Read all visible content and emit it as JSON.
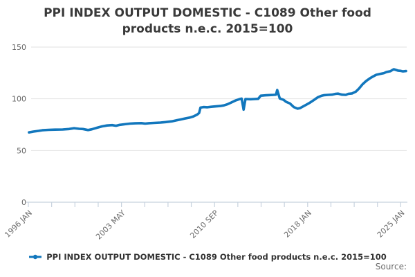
{
  "title": "PPI INDEX OUTPUT DOMESTIC - C1089 Other food products n.e.c. 2015=100",
  "legend": {
    "label": "PPI INDEX OUTPUT DOMESTIC - C1089 Other food products n.e.c. 2015=100"
  },
  "source_label": "Source:",
  "colors": {
    "series": "#1277bd",
    "grid": "#e2e2e2",
    "axis": "#c7d2de",
    "title_text": "#3a3a3a",
    "tick_text": "#6b6b6b"
  },
  "chart_data": {
    "type": "line",
    "title": "PPI INDEX OUTPUT DOMESTIC - C1089 Other food products n.e.c. 2015=100",
    "xlabel": "",
    "ylabel": "",
    "grid": "horizontal",
    "legend_position": "bottom",
    "x_axis": {
      "range": [
        1996.0,
        2025.85
      ],
      "tick_labels": [
        "1996 JAN",
        "2003 MAY",
        "2010 SEP",
        "2018 JAN",
        "2025 JAN"
      ],
      "minor_tick_count": 17
    },
    "y_axis": {
      "range": [
        0,
        150
      ],
      "tick_values": [
        0,
        50,
        100,
        150
      ],
      "tick_labels": [
        "0",
        "50",
        "100",
        "150"
      ]
    },
    "series": [
      {
        "name": "PPI INDEX OUTPUT DOMESTIC - C1089 Other food products n.e.c. 2015=100",
        "color": "#1277bd",
        "points": [
          [
            1996.05,
            67.5
          ],
          [
            1996.4,
            68.3
          ],
          [
            1996.8,
            69.0
          ],
          [
            1997.1,
            69.6
          ],
          [
            1997.6,
            70.0
          ],
          [
            1998.1,
            70.2
          ],
          [
            1998.7,
            70.3
          ],
          [
            1999.2,
            70.8
          ],
          [
            1999.6,
            71.6
          ],
          [
            2000.0,
            71.0
          ],
          [
            2000.3,
            70.8
          ],
          [
            2000.7,
            69.8
          ],
          [
            2001.0,
            70.5
          ],
          [
            2001.4,
            72.0
          ],
          [
            2001.8,
            73.3
          ],
          [
            2002.2,
            74.2
          ],
          [
            2002.6,
            74.5
          ],
          [
            2002.9,
            73.9
          ],
          [
            2003.2,
            74.8
          ],
          [
            2003.6,
            75.4
          ],
          [
            2004.0,
            76.0
          ],
          [
            2004.4,
            76.3
          ],
          [
            2004.9,
            76.5
          ],
          [
            2005.2,
            76.0
          ],
          [
            2005.5,
            76.4
          ],
          [
            2005.9,
            76.7
          ],
          [
            2006.4,
            77.0
          ],
          [
            2006.8,
            77.5
          ],
          [
            2007.3,
            78.2
          ],
          [
            2007.6,
            79.0
          ],
          [
            2008.0,
            80.0
          ],
          [
            2008.3,
            80.8
          ],
          [
            2008.7,
            81.8
          ],
          [
            2009.0,
            83.0
          ],
          [
            2009.3,
            84.8
          ],
          [
            2009.45,
            86.3
          ],
          [
            2009.55,
            91.5
          ],
          [
            2009.8,
            92.0
          ],
          [
            2010.1,
            91.8
          ],
          [
            2010.4,
            92.3
          ],
          [
            2010.7,
            92.6
          ],
          [
            2011.1,
            93.0
          ],
          [
            2011.4,
            93.6
          ],
          [
            2011.7,
            94.8
          ],
          [
            2012.0,
            96.5
          ],
          [
            2012.3,
            98.3
          ],
          [
            2012.6,
            99.6
          ],
          [
            2012.8,
            100.2
          ],
          [
            2012.95,
            89.5
          ],
          [
            2013.1,
            99.8
          ],
          [
            2013.5,
            99.6
          ],
          [
            2013.8,
            99.8
          ],
          [
            2014.1,
            100.0
          ],
          [
            2014.3,
            103.0
          ],
          [
            2014.7,
            103.4
          ],
          [
            2015.0,
            103.6
          ],
          [
            2015.3,
            103.8
          ],
          [
            2015.5,
            104.0
          ],
          [
            2015.6,
            108.5
          ],
          [
            2015.8,
            100.3
          ],
          [
            2016.1,
            99.0
          ],
          [
            2016.3,
            97.0
          ],
          [
            2016.6,
            95.5
          ],
          [
            2016.9,
            92.0
          ],
          [
            2017.2,
            90.5
          ],
          [
            2017.4,
            91.0
          ],
          [
            2017.7,
            93.0
          ],
          [
            2018.0,
            95.0
          ],
          [
            2018.2,
            96.5
          ],
          [
            2018.5,
            99.0
          ],
          [
            2018.8,
            101.5
          ],
          [
            2019.1,
            103.0
          ],
          [
            2019.3,
            103.5
          ],
          [
            2019.6,
            103.8
          ],
          [
            2019.9,
            104.0
          ],
          [
            2020.2,
            104.8
          ],
          [
            2020.4,
            105.0
          ],
          [
            2020.7,
            104.0
          ],
          [
            2021.0,
            103.8
          ],
          [
            2021.2,
            104.8
          ],
          [
            2021.5,
            105.2
          ],
          [
            2021.8,
            107.0
          ],
          [
            2022.05,
            110.0
          ],
          [
            2022.3,
            113.8
          ],
          [
            2022.6,
            117.2
          ],
          [
            2022.9,
            119.8
          ],
          [
            2023.1,
            121.3
          ],
          [
            2023.4,
            123.2
          ],
          [
            2023.7,
            124.0
          ],
          [
            2024.0,
            124.8
          ],
          [
            2024.2,
            125.9
          ],
          [
            2024.5,
            126.6
          ],
          [
            2024.77,
            128.6
          ],
          [
            2024.93,
            128.0
          ],
          [
            2025.1,
            127.3
          ],
          [
            2025.3,
            127.0
          ],
          [
            2025.5,
            126.5
          ],
          [
            2025.74,
            126.8
          ]
        ]
      }
    ]
  }
}
